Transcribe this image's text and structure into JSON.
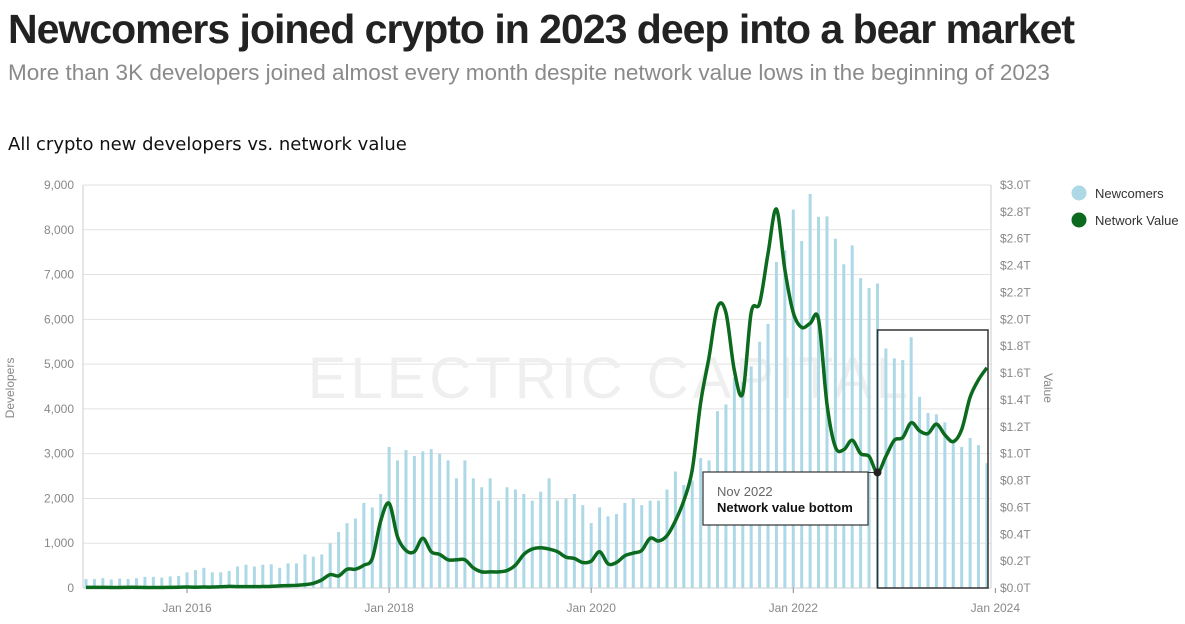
{
  "title": "Newcomers joined crypto in 2023 deep into a bear market",
  "subtitle": "More than 3K developers joined almost every month despite network value lows in the beginning of 2023",
  "chart_data": {
    "type": "bar+line",
    "title": "All crypto new developers vs. network value",
    "ylabel": "Developers",
    "y2label": "Value",
    "ylim": [
      0,
      9000
    ],
    "y2lim": [
      0,
      3.0
    ],
    "yticks": [
      "0",
      "1,000",
      "2,000",
      "3,000",
      "4,000",
      "5,000",
      "6,000",
      "7,000",
      "8,000",
      "9,000"
    ],
    "y2ticks": [
      "$0.0T",
      "$0.2T",
      "$0.4T",
      "$0.6T",
      "$0.8T",
      "$1.0T",
      "$1.2T",
      "$1.4T",
      "$1.6T",
      "$1.8T",
      "$2.0T",
      "$2.2T",
      "$2.4T",
      "$2.6T",
      "$2.8T",
      "$3.0T"
    ],
    "xticks": [
      "Jan 2016",
      "Jan 2018",
      "Jan 2020",
      "Jan 2022",
      "Jan 2024"
    ],
    "x_start": "Jan 2015",
    "x_end": "Dec 2023",
    "x_interval": "monthly",
    "grid": true,
    "legend_placement": "right",
    "watermark": "ELECTRIC CAPITAL",
    "series": [
      {
        "name": "Newcomers",
        "kind": "bar",
        "color": "#add8e6",
        "values": [
          200,
          200,
          220,
          190,
          210,
          200,
          220,
          250,
          250,
          230,
          260,
          270,
          350,
          400,
          450,
          350,
          350,
          380,
          480,
          520,
          480,
          520,
          530,
          450,
          550,
          550,
          750,
          700,
          750,
          1000,
          1250,
          1450,
          1550,
          1900,
          1800,
          2100,
          3150,
          2850,
          3080,
          2950,
          3050,
          3100,
          3000,
          2850,
          2450,
          2850,
          2450,
          2250,
          2450,
          1950,
          2250,
          2200,
          2100,
          1950,
          2150,
          2450,
          1950,
          2000,
          2100,
          1850,
          1450,
          1800,
          1600,
          1650,
          1900,
          2000,
          1850,
          1950,
          1950,
          2200,
          2600,
          2300,
          2400,
          2900,
          2850,
          3950,
          4100,
          4700,
          4600,
          4950,
          5500,
          5900,
          7280,
          7540,
          8450,
          7750,
          8800,
          8290,
          8300,
          7800,
          7230,
          7650,
          6920,
          6700,
          6800,
          5350,
          5130,
          5090,
          5600,
          4270,
          3910,
          3880,
          3700,
          3290,
          3150,
          3350,
          3190,
          2790
        ]
      },
      {
        "name": "Network Value",
        "kind": "line",
        "unit": "T",
        "color": "#0b6a1e",
        "values": [
          0.005,
          0.005,
          0.005,
          0.004,
          0.004,
          0.005,
          0.005,
          0.004,
          0.004,
          0.004,
          0.005,
          0.006,
          0.007,
          0.006,
          0.007,
          0.007,
          0.009,
          0.012,
          0.01,
          0.01,
          0.01,
          0.011,
          0.012,
          0.016,
          0.018,
          0.02,
          0.025,
          0.035,
          0.06,
          0.1,
          0.09,
          0.14,
          0.14,
          0.17,
          0.22,
          0.5,
          0.63,
          0.38,
          0.28,
          0.27,
          0.37,
          0.27,
          0.25,
          0.21,
          0.21,
          0.21,
          0.15,
          0.12,
          0.12,
          0.12,
          0.13,
          0.17,
          0.25,
          0.29,
          0.3,
          0.29,
          0.27,
          0.23,
          0.22,
          0.19,
          0.2,
          0.27,
          0.18,
          0.19,
          0.24,
          0.26,
          0.28,
          0.37,
          0.35,
          0.39,
          0.5,
          0.65,
          0.88,
          1.38,
          1.72,
          2.09,
          2.05,
          1.62,
          1.45,
          2.05,
          2.12,
          2.49,
          2.82,
          2.37,
          2.05,
          1.94,
          1.97,
          2.0,
          1.37,
          1.05,
          1.03,
          1.1,
          1.0,
          0.98,
          0.86,
          0.98,
          1.1,
          1.12,
          1.23,
          1.17,
          1.15,
          1.22,
          1.14,
          1.09,
          1.18,
          1.42,
          1.55,
          1.64
        ]
      }
    ],
    "annotation": {
      "date": "Nov 2022",
      "label": "Network value bottom"
    },
    "highlight": "2023"
  }
}
